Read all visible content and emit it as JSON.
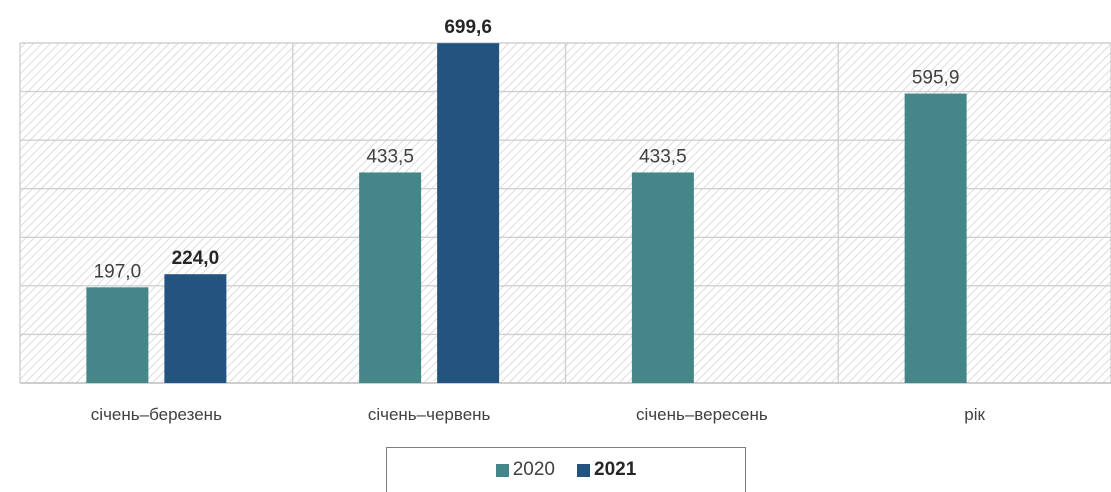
{
  "chart_data": {
    "type": "bar",
    "categories": [
      "січень–березень",
      "січень–червень",
      "січень–вересень",
      "рік"
    ],
    "series": [
      {
        "name": "2020",
        "values": [
          197.0,
          433.5,
          433.5,
          595.9
        ],
        "labels": [
          "197,0",
          "433,5",
          "433,5",
          "595,9"
        ],
        "color": "#458788",
        "bold": false
      },
      {
        "name": "2021",
        "values": [
          224.0,
          699.6,
          null,
          null
        ],
        "labels": [
          "224,0",
          "699,6",
          "",
          ""
        ],
        "color": "#235480",
        "bold": true
      }
    ],
    "ylim": [
      0,
      700
    ],
    "grid": true,
    "legend": "bottom"
  }
}
